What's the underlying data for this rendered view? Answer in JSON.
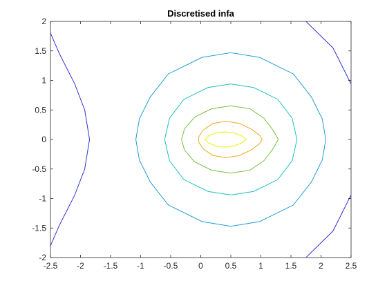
{
  "chart_data": {
    "type": "contour",
    "title": "Discretised infa",
    "xlabel": "",
    "ylabel": "",
    "xlim": [
      -2.5,
      2.5
    ],
    "ylim": [
      -2,
      2
    ],
    "xticks": [
      -2.5,
      -2,
      -1.5,
      -1,
      -0.5,
      0,
      0.5,
      1,
      1.5,
      2,
      2.5
    ],
    "yticks": [
      -2,
      -1.5,
      -1,
      -0.5,
      0,
      0.5,
      1,
      1.5,
      2
    ],
    "grid": false,
    "contours": [
      {
        "color": "#3333cc",
        "points": [
          [
            -2.52,
            -1.85
          ],
          [
            -2.35,
            -1.45
          ],
          [
            -2.1,
            -0.95
          ],
          [
            -1.93,
            -0.5
          ],
          [
            -1.85,
            0
          ],
          [
            -1.93,
            0.5
          ],
          [
            -2.1,
            0.95
          ],
          [
            -2.35,
            1.45
          ],
          [
            -2.52,
            1.85
          ],
          [
            -2.6,
            2.05
          ],
          null,
          [
            -0.7,
            2.05
          ],
          [
            0.1,
            2.3
          ],
          [
            0.5,
            2.35
          ],
          [
            0.9,
            2.3
          ],
          [
            1.7,
            2.05
          ],
          [
            2.2,
            1.55
          ],
          [
            2.52,
            0.9
          ],
          [
            2.6,
            0
          ],
          [
            2.52,
            -0.9
          ],
          [
            2.2,
            -1.55
          ],
          [
            1.7,
            -2.05
          ]
        ]
      },
      {
        "color": "#1f9bd6",
        "points": [
          [
            0.5,
            1.47
          ],
          [
            0.02,
            1.39
          ],
          [
            -0.54,
            1.11
          ],
          [
            -0.84,
            0.72
          ],
          [
            -1.02,
            0.35
          ],
          [
            -1.08,
            0
          ],
          [
            -1.02,
            -0.35
          ],
          [
            -0.84,
            -0.72
          ],
          [
            -0.54,
            -1.11
          ],
          [
            0.02,
            -1.39
          ],
          [
            0.5,
            -1.47
          ],
          [
            0.98,
            -1.39
          ],
          [
            1.54,
            -1.11
          ],
          [
            1.84,
            -0.72
          ],
          [
            2.02,
            -0.35
          ],
          [
            2.08,
            0
          ],
          [
            2.02,
            0.35
          ],
          [
            1.84,
            0.72
          ],
          [
            1.54,
            1.11
          ],
          [
            0.98,
            1.39
          ],
          [
            0.5,
            1.47
          ]
        ]
      },
      {
        "color": "#1fbfbf",
        "points": [
          [
            0.5,
            0.94
          ],
          [
            0.12,
            0.88
          ],
          [
            -0.28,
            0.68
          ],
          [
            -0.52,
            0.36
          ],
          [
            -0.6,
            0
          ],
          [
            -0.52,
            -0.36
          ],
          [
            -0.28,
            -0.68
          ],
          [
            0.12,
            -0.88
          ],
          [
            0.5,
            -0.94
          ],
          [
            0.88,
            -0.88
          ],
          [
            1.28,
            -0.68
          ],
          [
            1.52,
            -0.36
          ],
          [
            1.6,
            0
          ],
          [
            1.52,
            0.36
          ],
          [
            1.28,
            0.68
          ],
          [
            0.88,
            0.88
          ],
          [
            0.5,
            0.94
          ]
        ]
      },
      {
        "color": "#77bf3f",
        "points": [
          [
            0.5,
            0.57
          ],
          [
            0.18,
            0.52
          ],
          [
            -0.1,
            0.38
          ],
          [
            -0.27,
            0.18
          ],
          [
            -0.32,
            0
          ],
          [
            -0.27,
            -0.18
          ],
          [
            -0.1,
            -0.38
          ],
          [
            0.18,
            -0.52
          ],
          [
            0.5,
            -0.57
          ],
          [
            0.82,
            -0.52
          ],
          [
            1.05,
            -0.36
          ],
          [
            1.2,
            -0.16
          ],
          [
            1.29,
            0
          ],
          [
            1.2,
            0.16
          ],
          [
            1.05,
            0.36
          ],
          [
            0.82,
            0.52
          ],
          [
            0.5,
            0.57
          ]
        ]
      },
      {
        "color": "#f2a81d",
        "points": [
          [
            0.42,
            0.31
          ],
          [
            0.2,
            0.27
          ],
          [
            0.04,
            0.16
          ],
          [
            -0.03,
            0.05
          ],
          [
            -0.04,
            0
          ],
          [
            -0.03,
            -0.05
          ],
          [
            0.04,
            -0.16
          ],
          [
            0.2,
            -0.27
          ],
          [
            0.42,
            -0.31
          ],
          [
            0.65,
            -0.27
          ],
          [
            0.85,
            -0.17
          ],
          [
            0.98,
            -0.07
          ],
          [
            1.02,
            0
          ],
          [
            0.98,
            0.07
          ],
          [
            0.85,
            0.17
          ],
          [
            0.65,
            0.27
          ],
          [
            0.42,
            0.31
          ]
        ]
      },
      {
        "color": "#f0f000",
        "points": [
          [
            0.4,
            0.13
          ],
          [
            0.25,
            0.11
          ],
          [
            0.13,
            0.06
          ],
          [
            0.07,
            0
          ],
          [
            0.13,
            -0.06
          ],
          [
            0.25,
            -0.11
          ],
          [
            0.4,
            -0.13
          ],
          [
            0.55,
            -0.11
          ],
          [
            0.68,
            -0.06
          ],
          [
            0.76,
            0
          ],
          [
            0.68,
            0.06
          ],
          [
            0.55,
            0.11
          ],
          [
            0.4,
            0.13
          ]
        ]
      }
    ]
  }
}
